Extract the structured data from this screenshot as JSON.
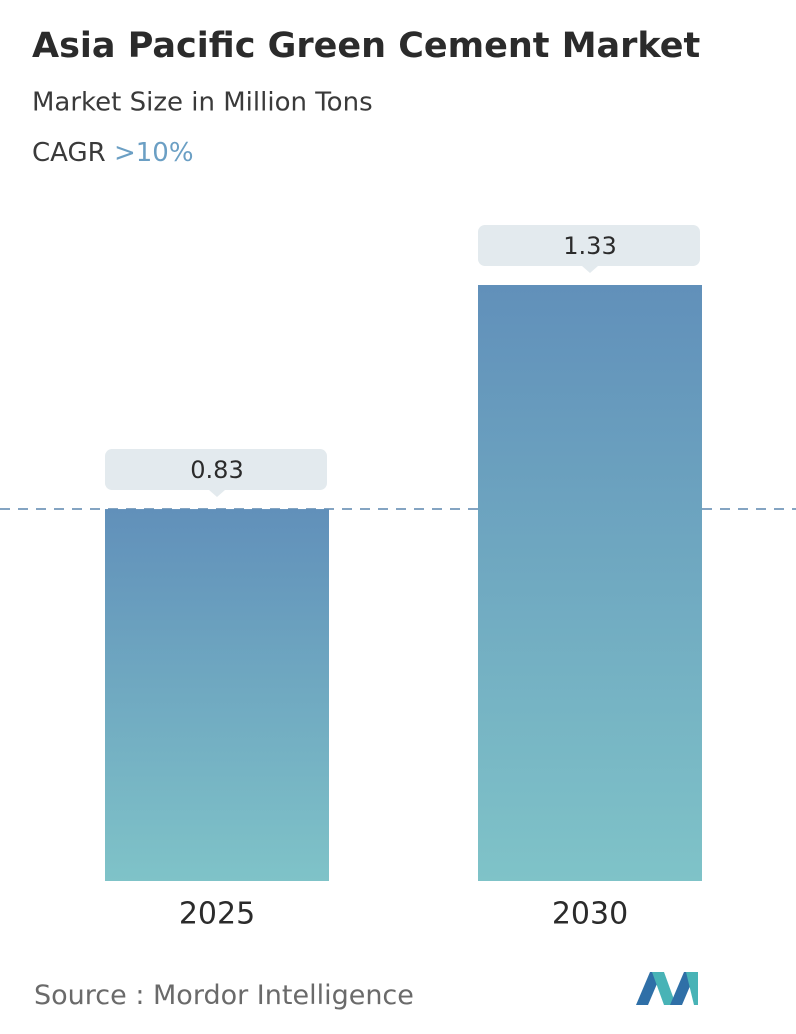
{
  "chart_data": {
    "type": "bar",
    "title": "Asia Pacific Green Cement Market",
    "subtitle": "Market Size in Million Tons",
    "cagr_label": "CAGR",
    "cagr_value": ">10%",
    "categories": [
      "2025",
      "2030"
    ],
    "values": [
      0.83,
      1.33
    ],
    "source_label": "Source :",
    "source": "Mordor Intelligence"
  }
}
